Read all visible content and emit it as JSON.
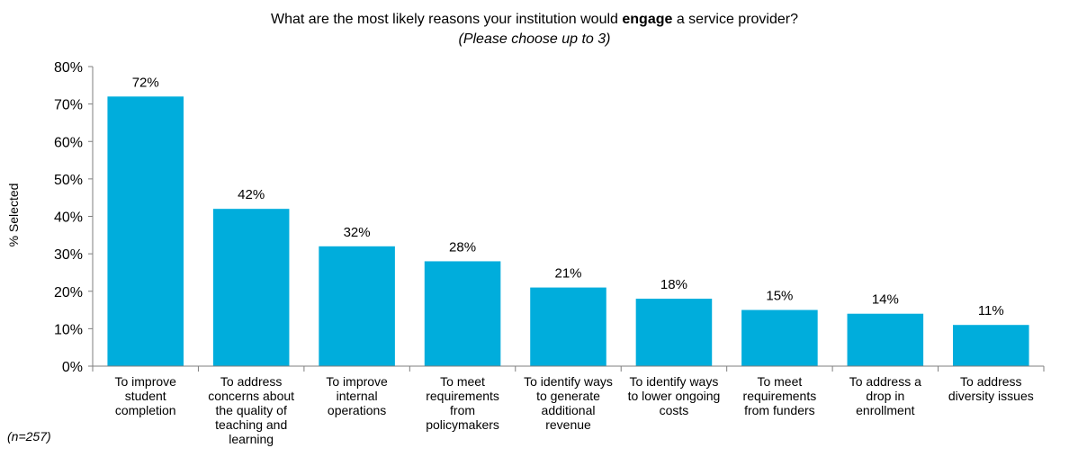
{
  "chart_data": {
    "type": "bar",
    "title_prefix": "What are the most likely reasons your institution would ",
    "title_bold": "engage",
    "title_suffix": " a service provider?",
    "subtitle": "(Please choose up to 3)",
    "ylabel": "% Selected",
    "xlabel": "",
    "ylim": [
      0,
      80
    ],
    "yticks": [
      0,
      10,
      20,
      30,
      40,
      50,
      60,
      70,
      80
    ],
    "tick_suffix": "%",
    "grid": false,
    "legend": "none",
    "bar_color": "#00ADDC",
    "categories": [
      [
        "To improve",
        "student",
        "completion"
      ],
      [
        "To address",
        "concerns about",
        "the quality of",
        "teaching and",
        "learning"
      ],
      [
        "To improve",
        "internal",
        "operations"
      ],
      [
        "To meet",
        "requirements",
        "from",
        "policymakers"
      ],
      [
        "To identify ways",
        "to generate",
        "additional",
        "revenue"
      ],
      [
        "To identify ways",
        "to lower ongoing",
        "costs"
      ],
      [
        "To meet",
        "requirements",
        "from funders"
      ],
      [
        "To address a",
        "drop in",
        "enrollment"
      ],
      [
        "To address",
        "diversity issues"
      ]
    ],
    "values": [
      72,
      42,
      32,
      28,
      21,
      18,
      15,
      14,
      11
    ],
    "value_labels": [
      "72%",
      "42%",
      "32%",
      "28%",
      "21%",
      "18%",
      "15%",
      "14%",
      "11%"
    ]
  },
  "footnote": "(n=257)"
}
